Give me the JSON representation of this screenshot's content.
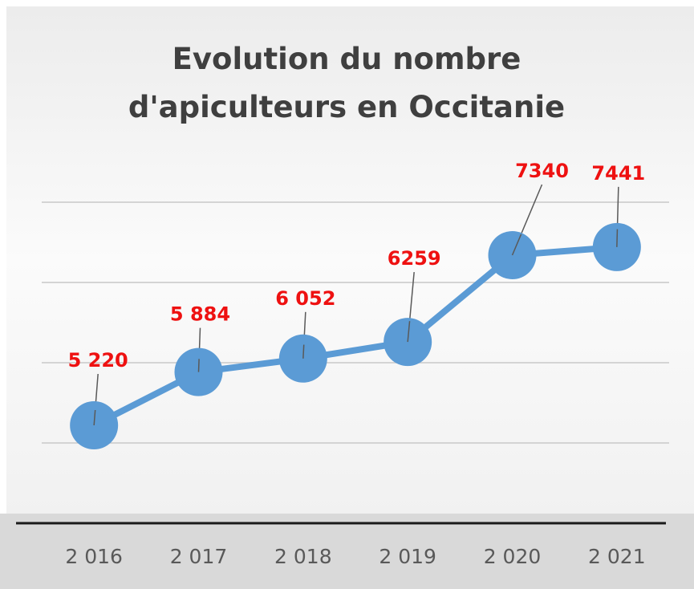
{
  "chart_data": {
    "type": "line",
    "title": "Evolution du nombre d'apiculteurs en Occitanie",
    "categories": [
      "2 016",
      "2 017",
      "2 018",
      "2 019",
      "2 020",
      "2 021"
    ],
    "series": [
      {
        "name": "Apiculteurs",
        "color": "#5b9bd5",
        "values": [
          5220,
          5884,
          6052,
          6259,
          7340,
          7441
        ],
        "value_labels": [
          "5 220",
          "5 884",
          "6 052",
          "6259",
          "7340",
          "7441"
        ]
      }
    ],
    "value_label_color": "#ee1111",
    "ylim": [
      4000,
      8000
    ],
    "yticks": [
      4000,
      5000,
      6000,
      7000,
      8000
    ],
    "grid": true,
    "legend": false
  }
}
